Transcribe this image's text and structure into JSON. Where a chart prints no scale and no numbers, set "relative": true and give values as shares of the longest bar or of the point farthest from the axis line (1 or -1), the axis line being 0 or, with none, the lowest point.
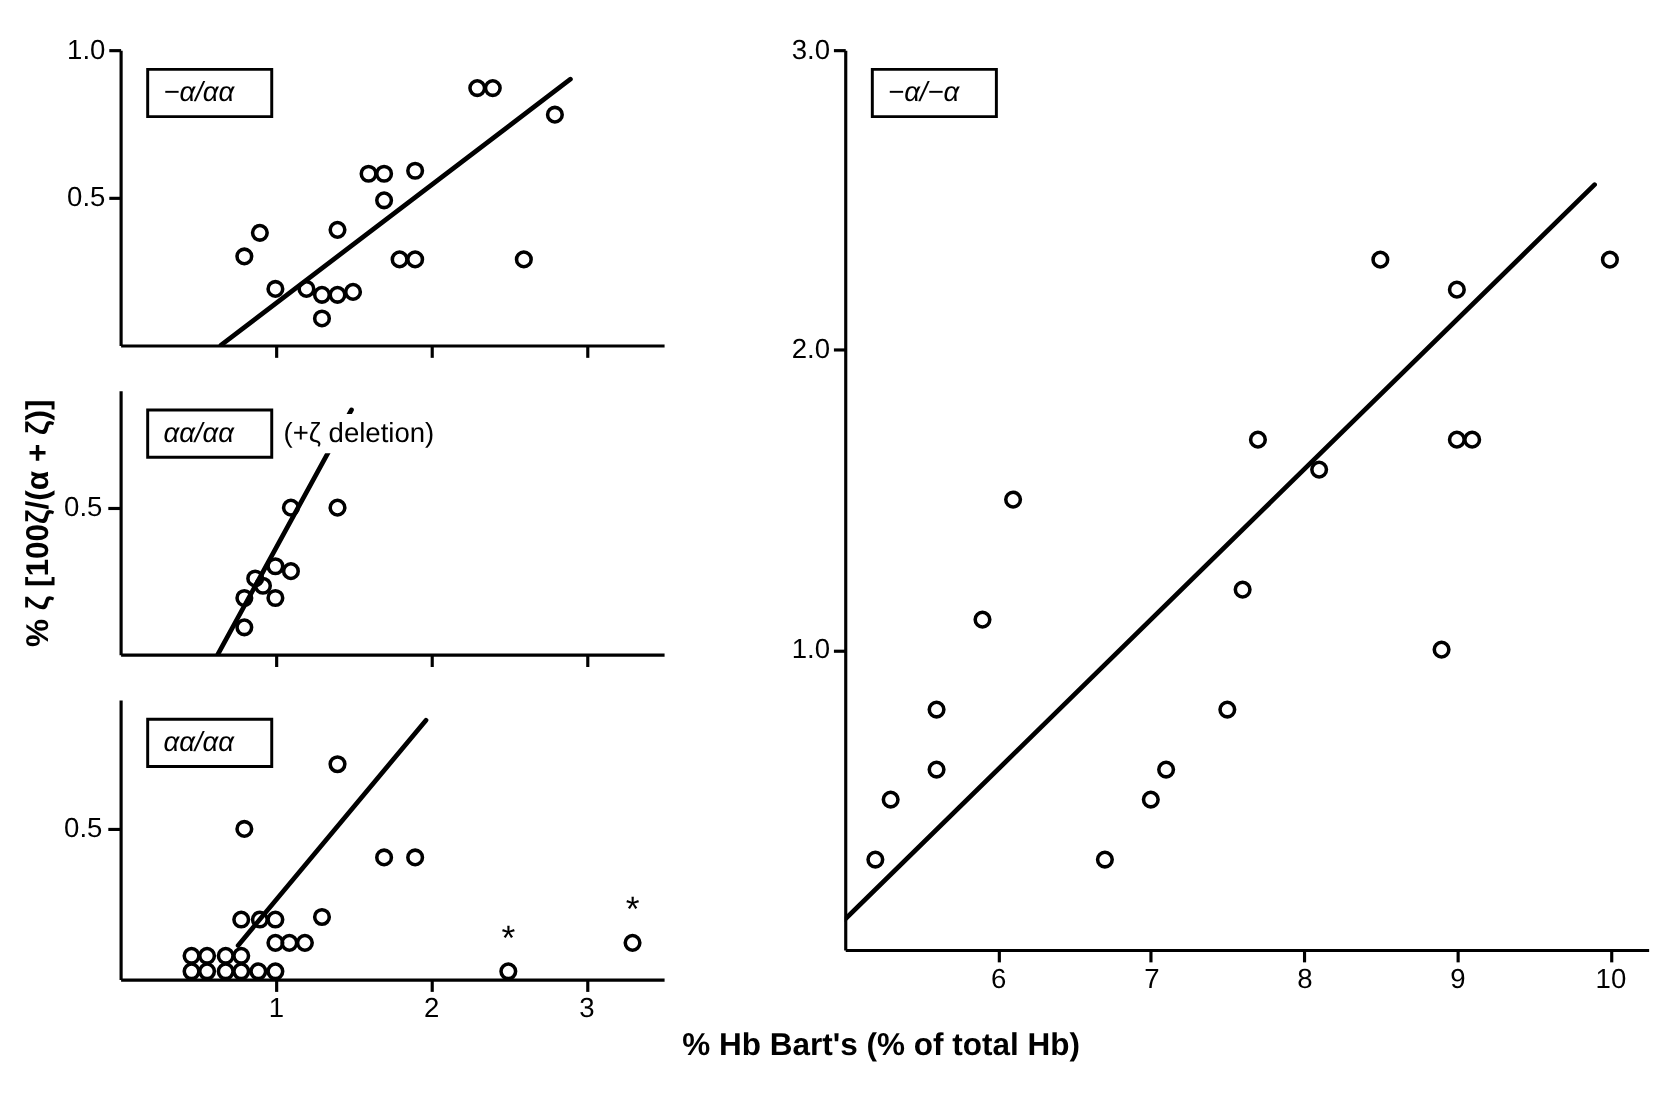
{
  "chart_data": [
    {
      "type": "scatter",
      "xlim": [
        0,
        3.5
      ],
      "xticks": [
        1,
        2,
        3
      ],
      "ylim": [
        0,
        1.0
      ],
      "yticks": [
        0.5,
        {
          "value": 1.0,
          "label": "1.0"
        }
      ],
      "tick_labels": "y",
      "annotations": [
        "−α/αα"
      ],
      "series": [
        {
          "type": "scatter",
          "color": "#000000",
          "marker": "circle",
          "x": [
            2.3,
            2.4,
            2.8,
            1.6,
            1.7,
            1.9,
            1.7,
            0.9,
            1.4,
            0.8,
            1.8,
            1.9,
            2.6,
            1.0,
            1.2,
            1.3,
            1.4,
            1.5,
            1.3
          ],
          "values": [
            0.87,
            0.87,
            0.78,
            0.58,
            0.58,
            0.59,
            0.49,
            0.38,
            0.39,
            0.3,
            0.29,
            0.29,
            0.29,
            0.19,
            0.19,
            0.17,
            0.17,
            0.18,
            0.09
          ]
        },
        {
          "type": "line",
          "color": "#000000",
          "line_style": "solid",
          "marker": "none",
          "x": [
            0.65,
            2.9
          ],
          "values": [
            0.0,
            0.9
          ]
        }
      ]
    },
    {
      "type": "scatter",
      "ylabel": "% ζ [100ζ/(α + ζ)]",
      "xlim": [
        0,
        3.5
      ],
      "xticks": [
        1,
        2,
        3
      ],
      "relative": true,
      "tick_labels": "y",
      "annotations": [
        "αα/αα",
        "(+ζ deletion)",
        "0.5"
      ],
      "series": [
        {
          "type": "scatter",
          "color": "#000000",
          "marker": "circle",
          "x": [
            1.1,
            1.4,
            1.0,
            1.1,
            0.87,
            0.92,
            0.8,
            1.0,
            0.8
          ],
          "values": [
            0.6,
            0.6,
            0.36,
            0.34,
            0.31,
            0.28,
            0.23,
            0.23,
            0.11
          ]
        },
        {
          "type": "line",
          "color": "#000000",
          "line_style": "solid",
          "marker": "none",
          "x": [
            0.63,
            1.49
          ],
          "values": [
            0.0,
            1.0
          ]
        }
      ]
    },
    {
      "type": "scatter",
      "xlim": [
        0,
        3.5
      ],
      "xticks": [
        1,
        2,
        3
      ],
      "relative": true,
      "annotations": [
        "αα/αα",
        {
          "text": "*",
          "x": 2.5,
          "y": 0.03
        },
        {
          "text": "*",
          "x": 3.3,
          "y": 0.14
        },
        "0.5"
      ],
      "series": [
        {
          "type": "scatter",
          "color": "#000000",
          "marker": "circle",
          "x": [
            1.4,
            0.8,
            1.7,
            1.9,
            0.78,
            0.9,
            1.0,
            1.3,
            1.0,
            1.09,
            1.19,
            3.3,
            0.46,
            0.56,
            0.68,
            0.78,
            0.46,
            0.56,
            0.68,
            0.78,
            0.89,
            1.0,
            2.5
          ],
          "values": [
            0.83,
            0.58,
            0.47,
            0.47,
            0.23,
            0.23,
            0.23,
            0.24,
            0.14,
            0.14,
            0.14,
            0.14,
            0.09,
            0.09,
            0.09,
            0.09,
            0.03,
            0.03,
            0.03,
            0.03,
            0.03,
            0.03,
            0.03
          ]
        },
        {
          "type": "line",
          "color": "#000000",
          "line_style": "solid",
          "marker": "none",
          "x": [
            0.76,
            1.97
          ],
          "values": [
            0.13,
            1.0
          ]
        }
      ]
    },
    {
      "type": "scatter",
      "xlabel": "% Hb Bart's (% of total Hb)",
      "xlim": [
        5.0,
        10.25
      ],
      "xticks": [
        6,
        7,
        8,
        9,
        10
      ],
      "ylim": [
        0,
        3.0
      ],
      "yticks": [
        {
          "value": 1.0,
          "label": "1.0"
        },
        {
          "value": 2.0,
          "label": "2.0"
        },
        {
          "value": 3.0,
          "label": "3.0"
        }
      ],
      "annotations": [
        "−α/−α"
      ],
      "series": [
        {
          "type": "scatter",
          "color": "#000000",
          "marker": "circle",
          "x": [
            5.2,
            5.3,
            5.6,
            5.6,
            5.9,
            6.1,
            6.7,
            7.0,
            7.1,
            7.5,
            7.6,
            7.7,
            8.1,
            8.5,
            8.9,
            9.0,
            9.0,
            9.1,
            10.0
          ],
          "values": [
            0.3,
            0.5,
            0.6,
            0.8,
            1.1,
            1.5,
            0.3,
            0.5,
            0.6,
            0.8,
            1.2,
            1.7,
            1.6,
            2.3,
            1.0,
            2.2,
            1.7,
            1.7,
            2.3
          ]
        },
        {
          "type": "line",
          "color": "#000000",
          "line_style": "solid",
          "marker": "none",
          "x": [
            5.0,
            9.9
          ],
          "values": [
            0.1,
            2.55
          ]
        }
      ]
    }
  ]
}
